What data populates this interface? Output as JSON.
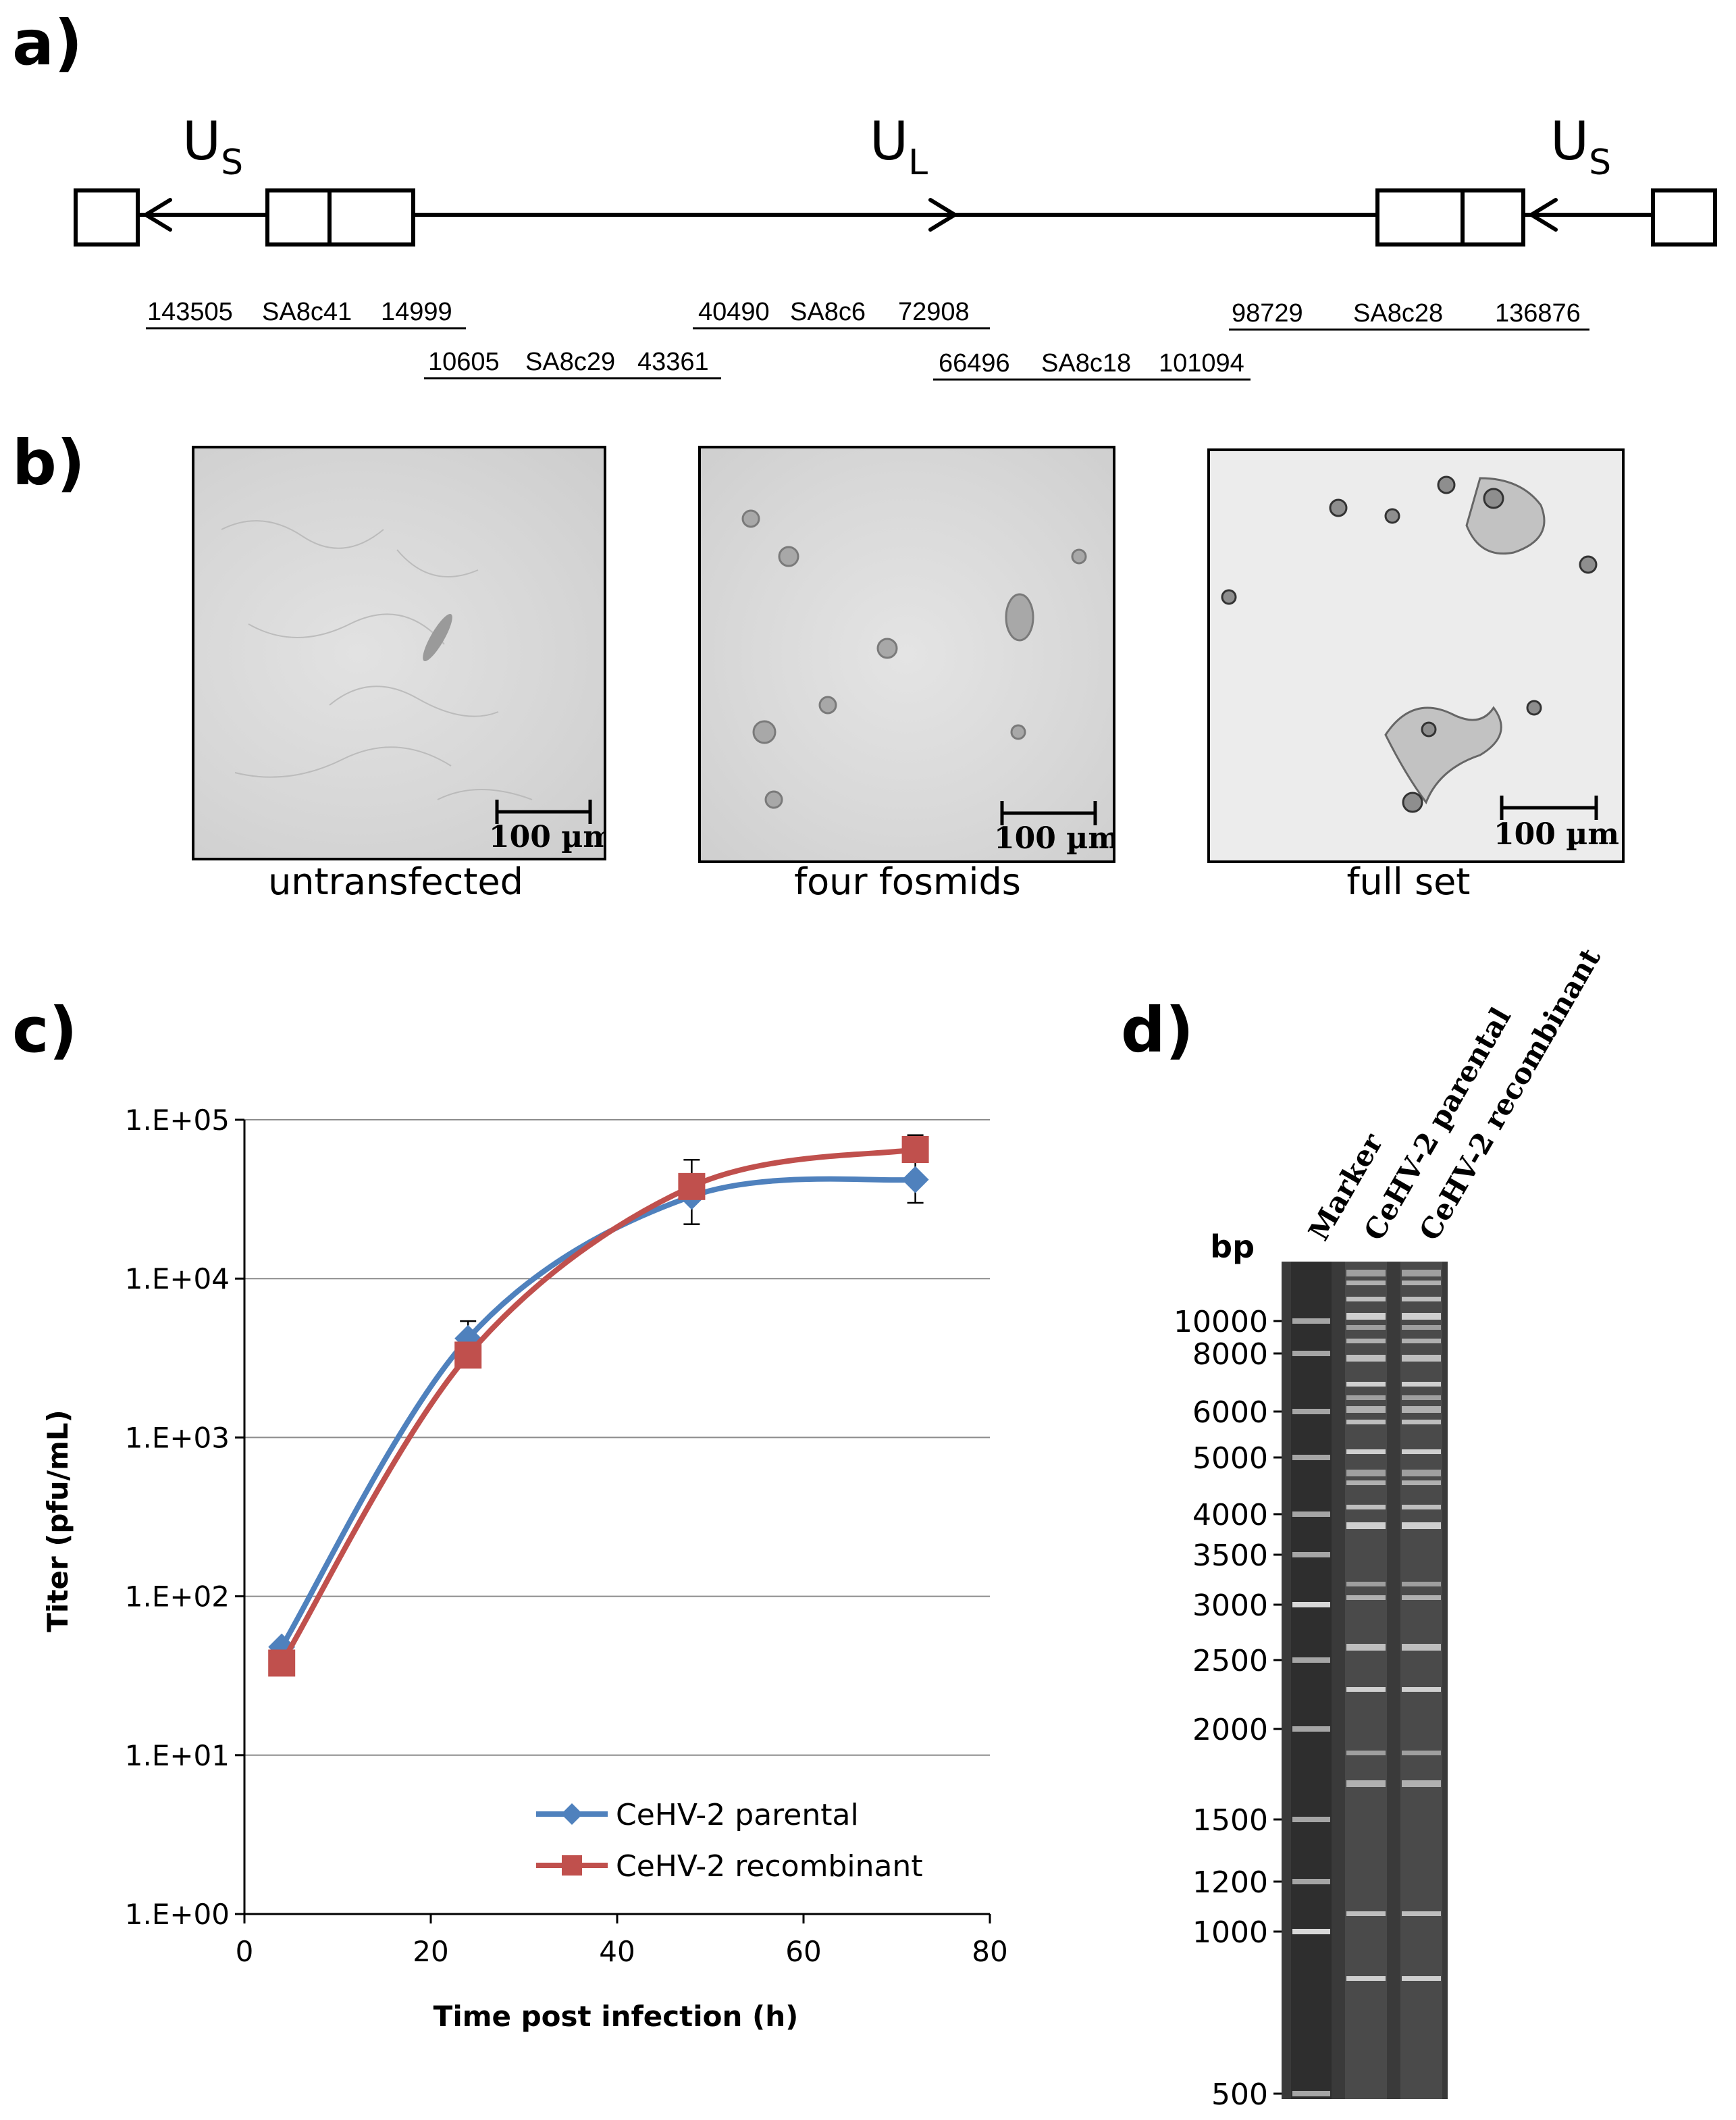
{
  "panels": {
    "a": "a)",
    "b": "b)",
    "c": "c)",
    "d": "d)"
  },
  "genome": {
    "us_left": "U",
    "us_left_sub": "S",
    "ul": "U",
    "ul_sub": "L",
    "us_right": "U",
    "us_right_sub": "S",
    "fosmids": [
      {
        "start": "143505",
        "name": "SA8c41",
        "end": "14999"
      },
      {
        "start": "10605",
        "name": "SA8c29",
        "end": "43361"
      },
      {
        "start": "40490",
        "name": "SA8c6",
        "end": "72908"
      },
      {
        "start": "66496",
        "name": "SA8c18",
        "end": "101094"
      },
      {
        "start": "98729",
        "name": "SA8c28",
        "end": "136876"
      }
    ]
  },
  "micrographs": [
    {
      "caption": "untransfected",
      "scale": "100 µm"
    },
    {
      "caption": "four fosmids",
      "scale": "100 µm"
    },
    {
      "caption": "full set",
      "scale": "100 µm"
    }
  ],
  "chart_data": {
    "type": "line",
    "xlabel": "Time post infection (h)",
    "ylabel": "Titer (pfu/mL)",
    "xlim": [
      0,
      80
    ],
    "xticks": [
      "0",
      "20",
      "40",
      "60",
      "80"
    ],
    "ylim": [
      1,
      100000
    ],
    "yscale": "log",
    "yticks": [
      "1.E+00",
      "1.E+01",
      "1.E+02",
      "1.E+03",
      "1.E+04",
      "1.E+05"
    ],
    "grid": "horizontal",
    "legend": "bottom-right",
    "series": [
      {
        "name": "CeHV-2 parental",
        "color": "#4f81bd",
        "marker": "diamond",
        "x": [
          4,
          24,
          48,
          72
        ],
        "y": [
          48,
          4200,
          33000,
          42000
        ],
        "err_low": [
          null,
          2800,
          22000,
          30000
        ],
        "err_high": [
          null,
          5400,
          56000,
          58000
        ]
      },
      {
        "name": "CeHV-2 recombinant",
        "color": "#c0504d",
        "marker": "square",
        "x": [
          4,
          24,
          48,
          72
        ],
        "y": [
          38,
          3300,
          38000,
          65000
        ],
        "err_low": [
          null,
          null,
          null,
          null
        ],
        "err_high": [
          null,
          null,
          null,
          80000
        ]
      }
    ]
  },
  "gel": {
    "lanes": [
      "Marker",
      "CeHV-2 parental",
      "CeHV-2 recombinant"
    ],
    "bp_title": "bp",
    "bp_labels": [
      "10000",
      "8000",
      "6000",
      "5000",
      "4000",
      "3500",
      "3000",
      "2500",
      "2000",
      "1500",
      "1200",
      "1000",
      "500"
    ]
  }
}
